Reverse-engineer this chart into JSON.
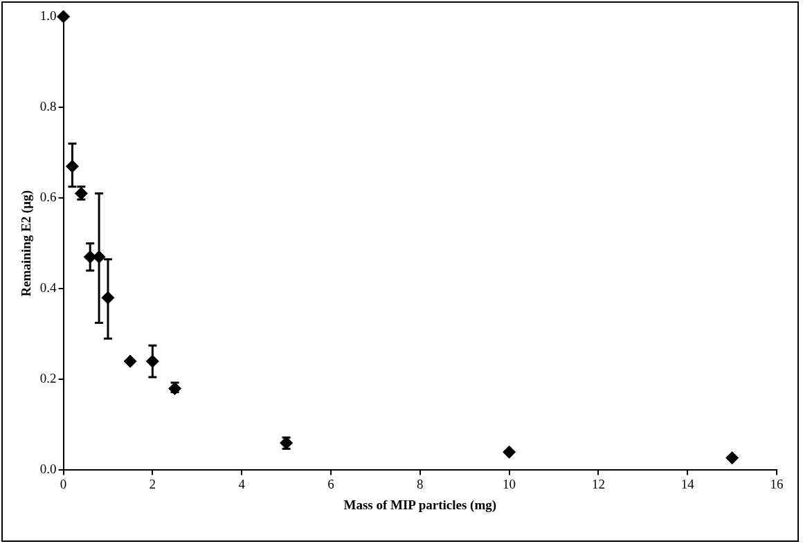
{
  "chart_data": {
    "type": "scatter",
    "xlabel": "Mass of MIP particles (mg)",
    "ylabel": "Remaining E2 (µg)",
    "x": [
      0,
      0.2,
      0.4,
      0.6,
      0.8,
      1,
      1.5,
      2,
      2.5,
      5,
      10,
      15
    ],
    "series": [
      {
        "color": "#000000",
        "values": [
          1.0,
          0.67,
          0.61,
          0.47,
          0.47,
          0.38,
          0.24,
          0.24,
          0.18,
          0.06,
          0.04,
          0.027
        ],
        "errors": [
          null,
          [
            0.625,
            0.72
          ],
          [
            0.597,
            0.625
          ],
          [
            0.44,
            0.5
          ],
          [
            0.325,
            0.61
          ],
          [
            0.29,
            0.465
          ],
          null,
          [
            0.205,
            0.275
          ],
          [
            0.172,
            0.193
          ],
          [
            0.047,
            0.072
          ],
          null,
          null
        ]
      }
    ],
    "xlim": [
      0,
      16
    ],
    "xticks": [
      0,
      2,
      4,
      6,
      8,
      10,
      12,
      14,
      16
    ],
    "ylim": [
      0,
      1
    ],
    "yticks": [
      {
        "value": 0,
        "label": "0.0"
      },
      {
        "value": 0.2,
        "label": "0.2"
      },
      {
        "value": 0.4,
        "label": "0.4"
      },
      {
        "value": 0.6,
        "label": "0.6"
      },
      {
        "value": 0.8,
        "label": "0.8"
      },
      {
        "value": 1,
        "label": "1.0"
      }
    ],
    "grid": false,
    "legend": false,
    "marker": "diamond"
  }
}
